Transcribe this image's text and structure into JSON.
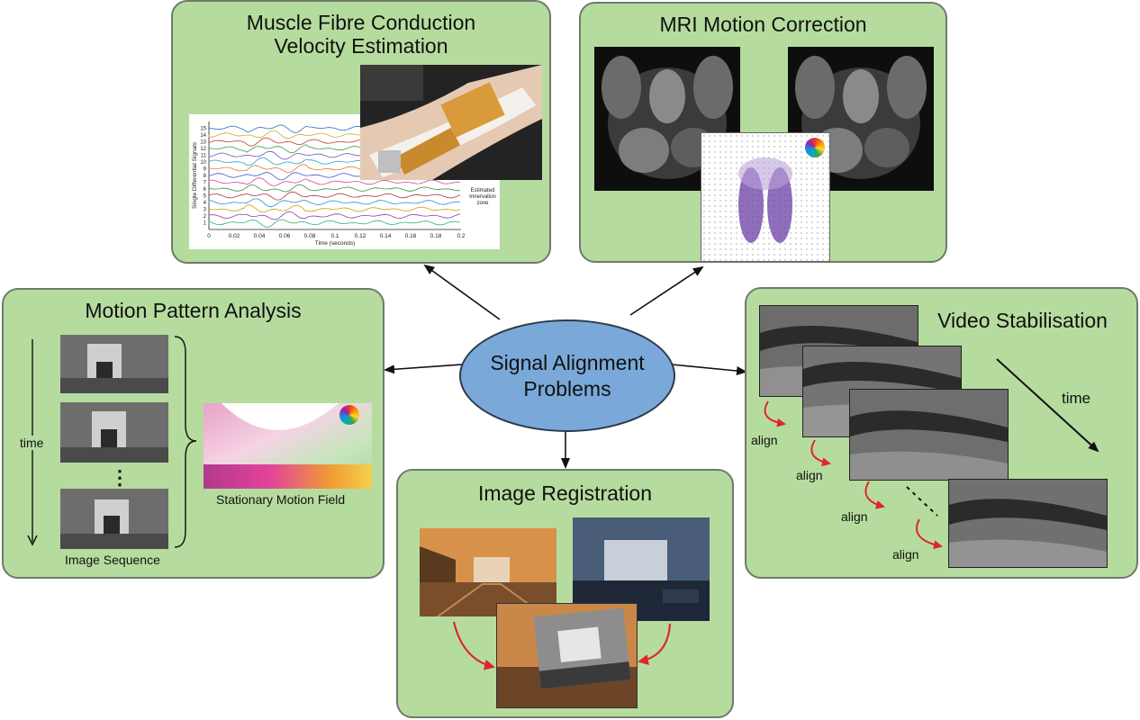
{
  "hub": {
    "line1": "Signal Alignment",
    "line2": "Problems"
  },
  "panels": {
    "muscle": {
      "title_line1": "Muscle Fibre Conduction",
      "title_line2": "Velocity Estimation",
      "ylabel": "Single Differential Signals",
      "xlabel": "Time (seconds)",
      "annotation": [
        "Estimated",
        "Innervation",
        "zone"
      ],
      "yticks": [
        "15",
        "14",
        "13",
        "12",
        "11",
        "10",
        "9",
        "8",
        "7",
        "6",
        "5",
        "4",
        "3",
        "2",
        "1"
      ],
      "xticks": [
        "0",
        "0.02",
        "0.04",
        "0.06",
        "0.08",
        "0.1",
        "0.12",
        "0.14",
        "0.16",
        "0.18",
        "0.2"
      ]
    },
    "mri": {
      "title": "MRI Motion Correction"
    },
    "motion": {
      "title": "Motion Pattern Analysis",
      "time_label": "time",
      "dots": "⋮",
      "sequence_label": "Image Sequence",
      "field_label": "Stationary Motion Field"
    },
    "video": {
      "title": "Video Stabilisation",
      "time_label": "time",
      "align_labels": [
        "align",
        "align",
        "align",
        "align"
      ]
    },
    "registration": {
      "title": "Image Registration"
    }
  },
  "colors": {
    "panel_bg": "#b5dc9e",
    "hub_bg": "#7aa9d9",
    "align_arrow": "#e0262a"
  }
}
